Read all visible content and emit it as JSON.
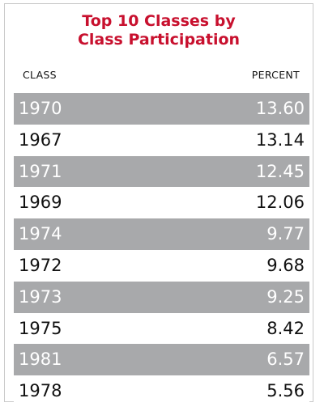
{
  "chart_data": {
    "type": "table",
    "title_lines": [
      "Top 10 Classes by",
      "Class Participation"
    ],
    "columns": [
      "CLASS",
      "PERCENT"
    ],
    "rows": [
      {
        "class": "1970",
        "percent": "13.60"
      },
      {
        "class": "1967",
        "percent": "13.14"
      },
      {
        "class": "1971",
        "percent": "12.45"
      },
      {
        "class": "1969",
        "percent": "12.06"
      },
      {
        "class": "1974",
        "percent": "9.77"
      },
      {
        "class": "1972",
        "percent": "9.68"
      },
      {
        "class": "1973",
        "percent": "9.25"
      },
      {
        "class": "1975",
        "percent": "8.42"
      },
      {
        "class": "1981",
        "percent": "6.57"
      },
      {
        "class": "1978",
        "percent": "5.56"
      }
    ]
  },
  "colors": {
    "title": "#c8102e",
    "shaded_row": "#a8a9ab",
    "shaded_text": "#ffffff",
    "plain_text": "#111111",
    "border": "#c9c9c9"
  }
}
